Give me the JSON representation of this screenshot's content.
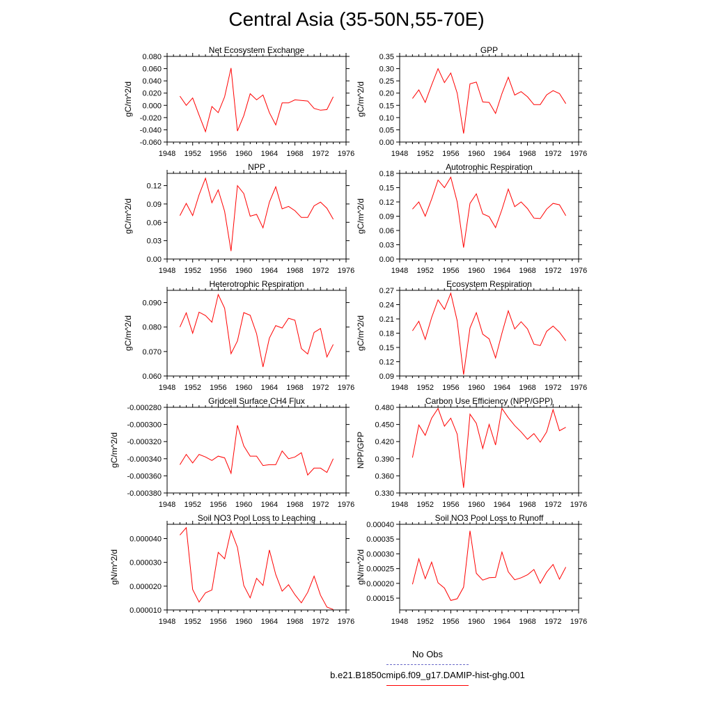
{
  "title": "Central Asia (35-50N,55-70E)",
  "colors": {
    "model_line": "#ff0000",
    "obs_line": "#6a6ac8"
  },
  "legend": {
    "obs_label": "No Obs",
    "model_label": "b.e21.B1850cmip6.f09_g17.DAMIP-hist-ghg.001"
  },
  "chart_data": [
    {
      "type": "line",
      "title": "Net Ecosystem Exchange",
      "ylabel": "gC/m^2/d",
      "xlim": [
        1948,
        1976
      ],
      "xticks": [
        1948,
        1952,
        1956,
        1960,
        1964,
        1968,
        1972,
        1976
      ],
      "ylim": [
        -0.06,
        0.08
      ],
      "yticks": [
        "-0.060",
        "-0.040",
        "-0.020",
        "0.000",
        "0.020",
        "0.040",
        "0.060",
        "0.080"
      ],
      "ytick_values": [
        -0.06,
        -0.04,
        -0.02,
        0,
        0.02,
        0.04,
        0.06,
        0.08
      ],
      "x": [
        1950,
        1951,
        1952,
        1953,
        1954,
        1955,
        1956,
        1957,
        1958,
        1959,
        1960,
        1961,
        1962,
        1963,
        1964,
        1965,
        1966,
        1967,
        1968,
        1969,
        1970,
        1971,
        1972,
        1973,
        1974
      ],
      "values": [
        0.015,
        0.0,
        0.012,
        -0.016,
        -0.043,
        -0.002,
        -0.012,
        0.014,
        0.061,
        -0.042,
        -0.017,
        0.019,
        0.009,
        0.017,
        -0.012,
        -0.032,
        0.004,
        0.004,
        0.009,
        0.008,
        0.007,
        -0.005,
        -0.008,
        -0.007,
        0.014
      ]
    },
    {
      "type": "line",
      "title": "GPP",
      "ylabel": "gC/m^2/d",
      "xlim": [
        1948,
        1976
      ],
      "xticks": [
        1948,
        1952,
        1956,
        1960,
        1964,
        1968,
        1972,
        1976
      ],
      "ylim": [
        0,
        0.35
      ],
      "yticks": [
        "0.00",
        "0.05",
        "0.10",
        "0.15",
        "0.20",
        "0.25",
        "0.30",
        "0.35"
      ],
      "ytick_values": [
        0,
        0.05,
        0.1,
        0.15,
        0.2,
        0.25,
        0.3,
        0.35
      ],
      "x": [
        1950,
        1951,
        1952,
        1953,
        1954,
        1955,
        1956,
        1957,
        1958,
        1959,
        1960,
        1961,
        1962,
        1963,
        1964,
        1965,
        1966,
        1967,
        1968,
        1969,
        1970,
        1971,
        1972,
        1973,
        1974
      ],
      "values": [
        0.178,
        0.213,
        0.162,
        0.233,
        0.3,
        0.243,
        0.282,
        0.2,
        0.035,
        0.238,
        0.245,
        0.164,
        0.162,
        0.117,
        0.198,
        0.265,
        0.192,
        0.206,
        0.185,
        0.153,
        0.153,
        0.193,
        0.21,
        0.198,
        0.157
      ]
    },
    {
      "type": "line",
      "title": "NPP",
      "ylabel": "gC/m^2/d",
      "xlim": [
        1948,
        1976
      ],
      "xticks": [
        1948,
        1952,
        1956,
        1960,
        1964,
        1968,
        1972,
        1976
      ],
      "ylim": [
        0,
        0.14
      ],
      "yticks": [
        "0.00",
        "0.03",
        "0.06",
        "0.09",
        "0.12"
      ],
      "ytick_values": [
        0,
        0.03,
        0.06,
        0.09,
        0.12
      ],
      "x": [
        1950,
        1951,
        1952,
        1953,
        1954,
        1955,
        1956,
        1957,
        1958,
        1959,
        1960,
        1961,
        1962,
        1963,
        1964,
        1965,
        1966,
        1967,
        1968,
        1969,
        1970,
        1971,
        1972,
        1973,
        1974
      ],
      "values": [
        0.071,
        0.091,
        0.071,
        0.105,
        0.132,
        0.092,
        0.113,
        0.078,
        0.013,
        0.12,
        0.107,
        0.07,
        0.073,
        0.051,
        0.093,
        0.118,
        0.082,
        0.086,
        0.079,
        0.068,
        0.068,
        0.087,
        0.093,
        0.083,
        0.065
      ]
    },
    {
      "type": "line",
      "title": "Autotrophic Respiration",
      "ylabel": "gC/m^2/d",
      "xlim": [
        1948,
        1976
      ],
      "xticks": [
        1948,
        1952,
        1956,
        1960,
        1964,
        1968,
        1972,
        1976
      ],
      "ylim": [
        0,
        0.18
      ],
      "yticks": [
        "0.00",
        "0.03",
        "0.06",
        "0.09",
        "0.12",
        "0.15",
        "0.18"
      ],
      "ytick_values": [
        0,
        0.03,
        0.06,
        0.09,
        0.12,
        0.15,
        0.18
      ],
      "x": [
        1950,
        1951,
        1952,
        1953,
        1954,
        1955,
        1956,
        1957,
        1958,
        1959,
        1960,
        1961,
        1962,
        1963,
        1964,
        1965,
        1966,
        1967,
        1968,
        1969,
        1970,
        1971,
        1972,
        1973,
        1974
      ],
      "values": [
        0.105,
        0.12,
        0.09,
        0.126,
        0.166,
        0.15,
        0.172,
        0.12,
        0.024,
        0.117,
        0.137,
        0.095,
        0.089,
        0.066,
        0.104,
        0.147,
        0.11,
        0.12,
        0.106,
        0.086,
        0.085,
        0.105,
        0.117,
        0.114,
        0.091
      ]
    },
    {
      "type": "line",
      "title": "Heterotrophic Respiration",
      "ylabel": "gC/m^2/d",
      "xlim": [
        1948,
        1976
      ],
      "xticks": [
        1948,
        1952,
        1956,
        1960,
        1964,
        1968,
        1972,
        1976
      ],
      "ylim": [
        0.06,
        0.095
      ],
      "yticks": [
        "0.060",
        "0.070",
        "0.080",
        "0.090"
      ],
      "ytick_values": [
        0.06,
        0.07,
        0.08,
        0.09
      ],
      "x": [
        1950,
        1951,
        1952,
        1953,
        1954,
        1955,
        1956,
        1957,
        1958,
        1959,
        1960,
        1961,
        1962,
        1963,
        1964,
        1965,
        1966,
        1967,
        1968,
        1969,
        1970,
        1971,
        1972,
        1973,
        1974
      ],
      "values": [
        0.08,
        0.0858,
        0.0775,
        0.0861,
        0.0847,
        0.082,
        0.0933,
        0.0877,
        0.0691,
        0.0743,
        0.0859,
        0.0848,
        0.0773,
        0.0637,
        0.0755,
        0.0806,
        0.0796,
        0.0836,
        0.0828,
        0.0712,
        0.069,
        0.0778,
        0.0794,
        0.0678,
        0.0729
      ]
    },
    {
      "type": "line",
      "title": "Ecosystem Respiration",
      "ylabel": "gC/m^2/d",
      "xlim": [
        1948,
        1976
      ],
      "xticks": [
        1948,
        1952,
        1956,
        1960,
        1964,
        1968,
        1972,
        1976
      ],
      "ylim": [
        0.09,
        0.27
      ],
      "yticks": [
        "0.09",
        "0.12",
        "0.15",
        "0.18",
        "0.21",
        "0.24",
        "0.27"
      ],
      "ytick_values": [
        0.09,
        0.12,
        0.15,
        0.18,
        0.21,
        0.24,
        0.27
      ],
      "x": [
        1950,
        1951,
        1952,
        1953,
        1954,
        1955,
        1956,
        1957,
        1958,
        1959,
        1960,
        1961,
        1962,
        1963,
        1964,
        1965,
        1966,
        1967,
        1968,
        1969,
        1970,
        1971,
        1972,
        1973,
        1974
      ],
      "values": [
        0.185,
        0.205,
        0.167,
        0.213,
        0.25,
        0.23,
        0.264,
        0.206,
        0.093,
        0.191,
        0.223,
        0.178,
        0.168,
        0.128,
        0.18,
        0.227,
        0.189,
        0.204,
        0.189,
        0.157,
        0.154,
        0.184,
        0.195,
        0.182,
        0.164
      ]
    },
    {
      "type": "line",
      "title": "Gridcell Surface CH4 Flux",
      "ylabel": "gC/m^2/d",
      "xlim": [
        1948,
        1976
      ],
      "xticks": [
        1948,
        1952,
        1956,
        1960,
        1964,
        1968,
        1972,
        1976
      ],
      "ylim": [
        -0.00038,
        -0.00028
      ],
      "yticks": [
        "-0.000380",
        "-0.000360",
        "-0.000340",
        "-0.000320",
        "-0.000300",
        "-0.000280"
      ],
      "ytick_values": [
        -0.00038,
        -0.00036,
        -0.00034,
        -0.00032,
        -0.0003,
        -0.00028
      ],
      "x": [
        1950,
        1951,
        1952,
        1953,
        1954,
        1955,
        1956,
        1957,
        1958,
        1959,
        1960,
        1961,
        1962,
        1963,
        1964,
        1965,
        1966,
        1967,
        1968,
        1969,
        1970,
        1971,
        1972,
        1973,
        1974
      ],
      "values": [
        -0.000347,
        -0.000335,
        -0.000345,
        -0.000335,
        -0.000338,
        -0.000342,
        -0.000337,
        -0.000339,
        -0.000357,
        -0.000301,
        -0.000325,
        -0.000337,
        -0.000337,
        -0.000348,
        -0.000347,
        -0.000347,
        -0.000331,
        -0.00034,
        -0.000338,
        -0.000333,
        -0.000359,
        -0.000351,
        -0.000351,
        -0.000356,
        -0.00034
      ]
    },
    {
      "type": "line",
      "title": "Carbon Use Efficiency (NPP/GPP)",
      "ylabel": "NPP/GPP",
      "xlim": [
        1948,
        1976
      ],
      "xticks": [
        1948,
        1952,
        1956,
        1960,
        1964,
        1968,
        1972,
        1976
      ],
      "ylim": [
        0.33,
        0.48
      ],
      "yticks": [
        "0.330",
        "0.360",
        "0.390",
        "0.420",
        "0.450",
        "0.480"
      ],
      "ytick_values": [
        0.33,
        0.36,
        0.39,
        0.42,
        0.45,
        0.48
      ],
      "x": [
        1950,
        1951,
        1952,
        1953,
        1954,
        1955,
        1956,
        1957,
        1958,
        1959,
        1960,
        1961,
        1962,
        1963,
        1964,
        1965,
        1966,
        1967,
        1968,
        1969,
        1970,
        1971,
        1972,
        1973,
        1974
      ],
      "values": [
        0.392,
        0.449,
        0.431,
        0.461,
        0.478,
        0.447,
        0.461,
        0.433,
        0.339,
        0.468,
        0.452,
        0.408,
        0.45,
        0.414,
        0.478,
        0.462,
        0.448,
        0.437,
        0.424,
        0.434,
        0.419,
        0.437,
        0.476,
        0.439,
        0.445
      ]
    },
    {
      "type": "line",
      "title": "Soil NO3 Pool Loss to Leaching",
      "ylabel": "gN/m^2/d",
      "xlim": [
        1948,
        1976
      ],
      "xticks": [
        1948,
        1952,
        1956,
        1960,
        1964,
        1968,
        1972,
        1976
      ],
      "ylim": [
        1e-05,
        4.6e-05
      ],
      "yticks": [
        "0.000010",
        "0.000020",
        "0.000030",
        "0.000040"
      ],
      "ytick_values": [
        1e-05,
        2e-05,
        3e-05,
        4e-05
      ],
      "x": [
        1950,
        1951,
        1952,
        1953,
        1954,
        1955,
        1956,
        1957,
        1958,
        1959,
        1960,
        1961,
        1962,
        1963,
        1964,
        1965,
        1966,
        1967,
        1968,
        1969,
        1970,
        1971,
        1972,
        1973,
        1974
      ],
      "values": [
        4.15e-05,
        4.46e-05,
        1.86e-05,
        1.33e-05,
        1.72e-05,
        1.84e-05,
        3.42e-05,
        3.15e-05,
        4.34e-05,
        3.63e-05,
        2.03e-05,
        1.51e-05,
        2.33e-05,
        2.03e-05,
        3.52e-05,
        2.49e-05,
        1.79e-05,
        2.06e-05,
        1.64e-05,
        1.3e-05,
        1.74e-05,
        2.42e-05,
        1.62e-05,
        1.12e-05,
        1.02e-05
      ]
    },
    {
      "type": "line",
      "title": "Soil NO3 Pool Loss to Runoff",
      "ylabel": "gN/m^2/d",
      "xlim": [
        1948,
        1976
      ],
      "xticks": [
        1948,
        1952,
        1956,
        1960,
        1964,
        1968,
        1972,
        1976
      ],
      "ylim": [
        0.00011,
        0.0004
      ],
      "yticks": [
        "0.00015",
        "0.00020",
        "0.00025",
        "0.00030",
        "0.00035",
        "0.00040"
      ],
      "ytick_values": [
        0.00015,
        0.0002,
        0.00025,
        0.0003,
        0.00035,
        0.0004
      ],
      "x": [
        1950,
        1951,
        1952,
        1953,
        1954,
        1955,
        1956,
        1957,
        1958,
        1959,
        1960,
        1961,
        1962,
        1963,
        1964,
        1965,
        1966,
        1967,
        1968,
        1969,
        1970,
        1971,
        1972,
        1973,
        1974
      ],
      "values": [
        0.000197,
        0.000283,
        0.000216,
        0.000272,
        0.000202,
        0.000184,
        0.000142,
        0.000148,
        0.000187,
        0.000378,
        0.000234,
        0.000211,
        0.000219,
        0.00022,
        0.000306,
        0.000239,
        0.000212,
        0.000219,
        0.000229,
        0.000247,
        0.0002,
        0.000238,
        0.000264,
        0.000214,
        0.000255
      ]
    }
  ]
}
